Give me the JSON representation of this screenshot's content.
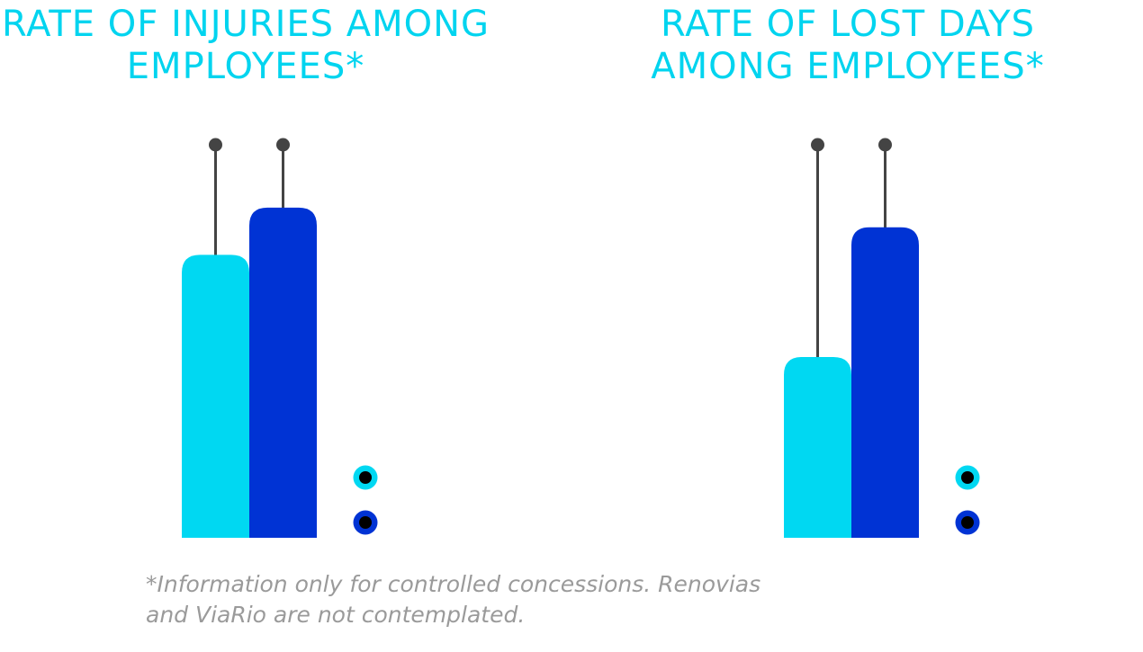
{
  "colors": {
    "title": "#00d4ef",
    "series_light": "#00d8f2",
    "series_dark": "#0033d4",
    "stem": "#444444",
    "marker_dot": "#000000",
    "footnote": "#9a9a9a"
  },
  "chart_data": [
    {
      "type": "bar",
      "title_lines": [
        "RATE OF INJURIES AMONG",
        "EMPLOYEES*"
      ],
      "series": [
        {
          "name": "",
          "color": "#00d8f2",
          "values": [
            0.72
          ]
        },
        {
          "name": "",
          "color": "#0033d4",
          "values": [
            0.84
          ]
        }
      ],
      "stem_top": [
        1.0,
        1.0
      ],
      "ylim": [
        0,
        1
      ],
      "legend_entries": 2,
      "value_labels": []
    },
    {
      "type": "bar",
      "title_lines": [
        "RATE OF LOST DAYS",
        "AMONG EMPLOYEES*"
      ],
      "series": [
        {
          "name": "",
          "color": "#00d8f2",
          "values": [
            0.46
          ]
        },
        {
          "name": "",
          "color": "#0033d4",
          "values": [
            0.79
          ]
        }
      ],
      "stem_top": [
        1.0,
        1.0
      ],
      "ylim": [
        0,
        1
      ],
      "legend_entries": 2,
      "value_labels": []
    }
  ],
  "footnote_lines": [
    "*Information only for controlled concessions. Renovias",
    "and ViaRio are not contemplated."
  ]
}
